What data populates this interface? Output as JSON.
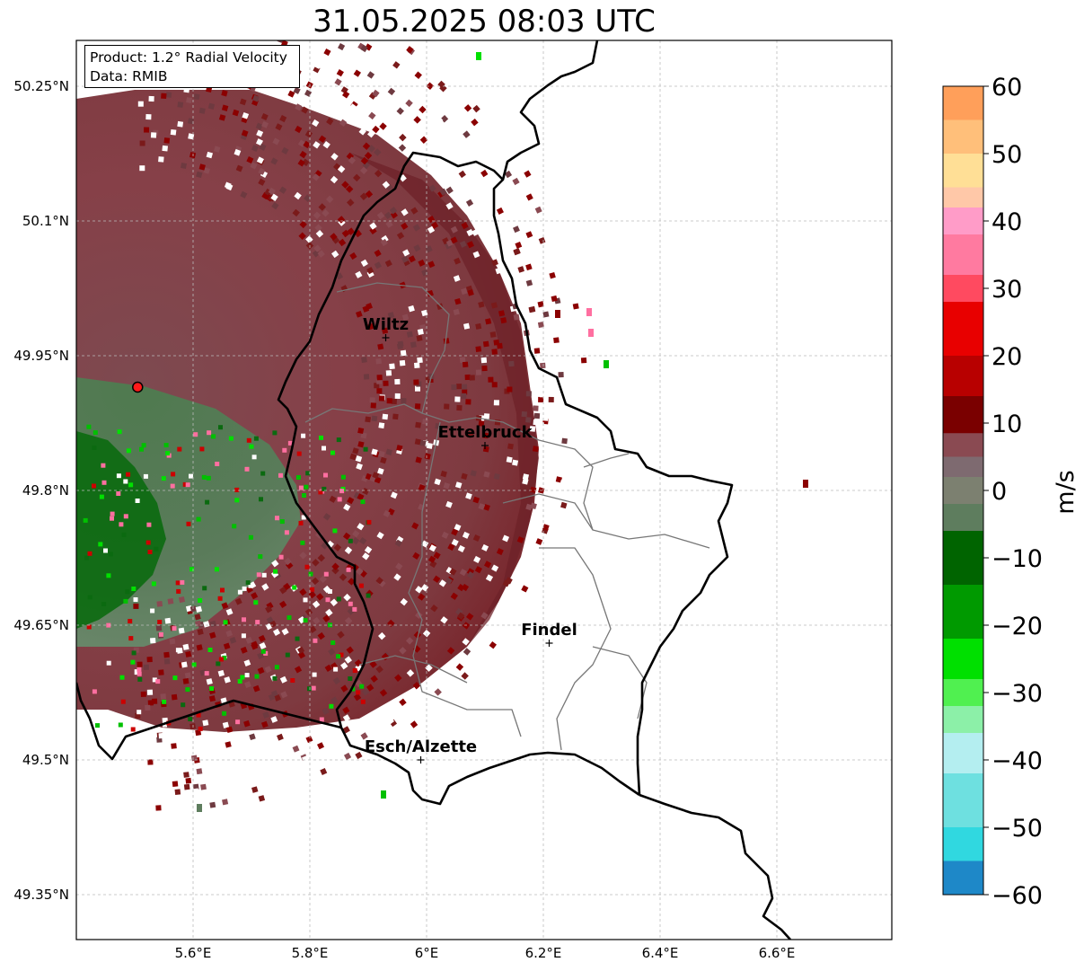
{
  "title": "31.05.2025 08:03 UTC",
  "info": {
    "product": "Product: 1.2° Radial Velocity",
    "data": "Data: RMIB"
  },
  "axes": {
    "lat_ticks": [
      "50.25°N",
      "50.1°N",
      "49.95°N",
      "49.8°N",
      "49.65°N",
      "49.5°N",
      "49.35°N"
    ],
    "lon_ticks": [
      "5.6°E",
      "5.8°E",
      "6°E",
      "6.2°E",
      "6.4°E",
      "6.6°E"
    ],
    "lat_values": [
      50.25,
      50.1,
      49.95,
      49.8,
      49.65,
      49.5,
      49.35
    ],
    "lon_values": [
      5.6,
      5.8,
      6.0,
      6.2,
      6.4,
      6.6
    ]
  },
  "colorbar": {
    "unit": "m/s",
    "ticks": [
      "60",
      "50",
      "40",
      "30",
      "20",
      "10",
      "0",
      "−10",
      "−20",
      "−30",
      "−40",
      "−50",
      "−60"
    ],
    "min": -60,
    "max": 60
  },
  "cities": [
    {
      "name": "Wiltz",
      "lon": 5.93,
      "lat": 49.97
    },
    {
      "name": "Ettelbruck",
      "lon": 6.1,
      "lat": 49.85
    },
    {
      "name": "Findel",
      "lon": 6.21,
      "lat": 49.63
    },
    {
      "name": "Esch/Alzette",
      "lon": 5.99,
      "lat": 49.5
    }
  ],
  "radar_site": {
    "lon": 5.505,
    "lat": 49.915
  },
  "colors": {
    "strong_away": "#8b0000",
    "weak_away": "#8a4a52",
    "weak_toward": "#5e7d5e",
    "strong_toward": "#006400",
    "pink": "#ff6fa0",
    "bright_green": "#00e000"
  }
}
